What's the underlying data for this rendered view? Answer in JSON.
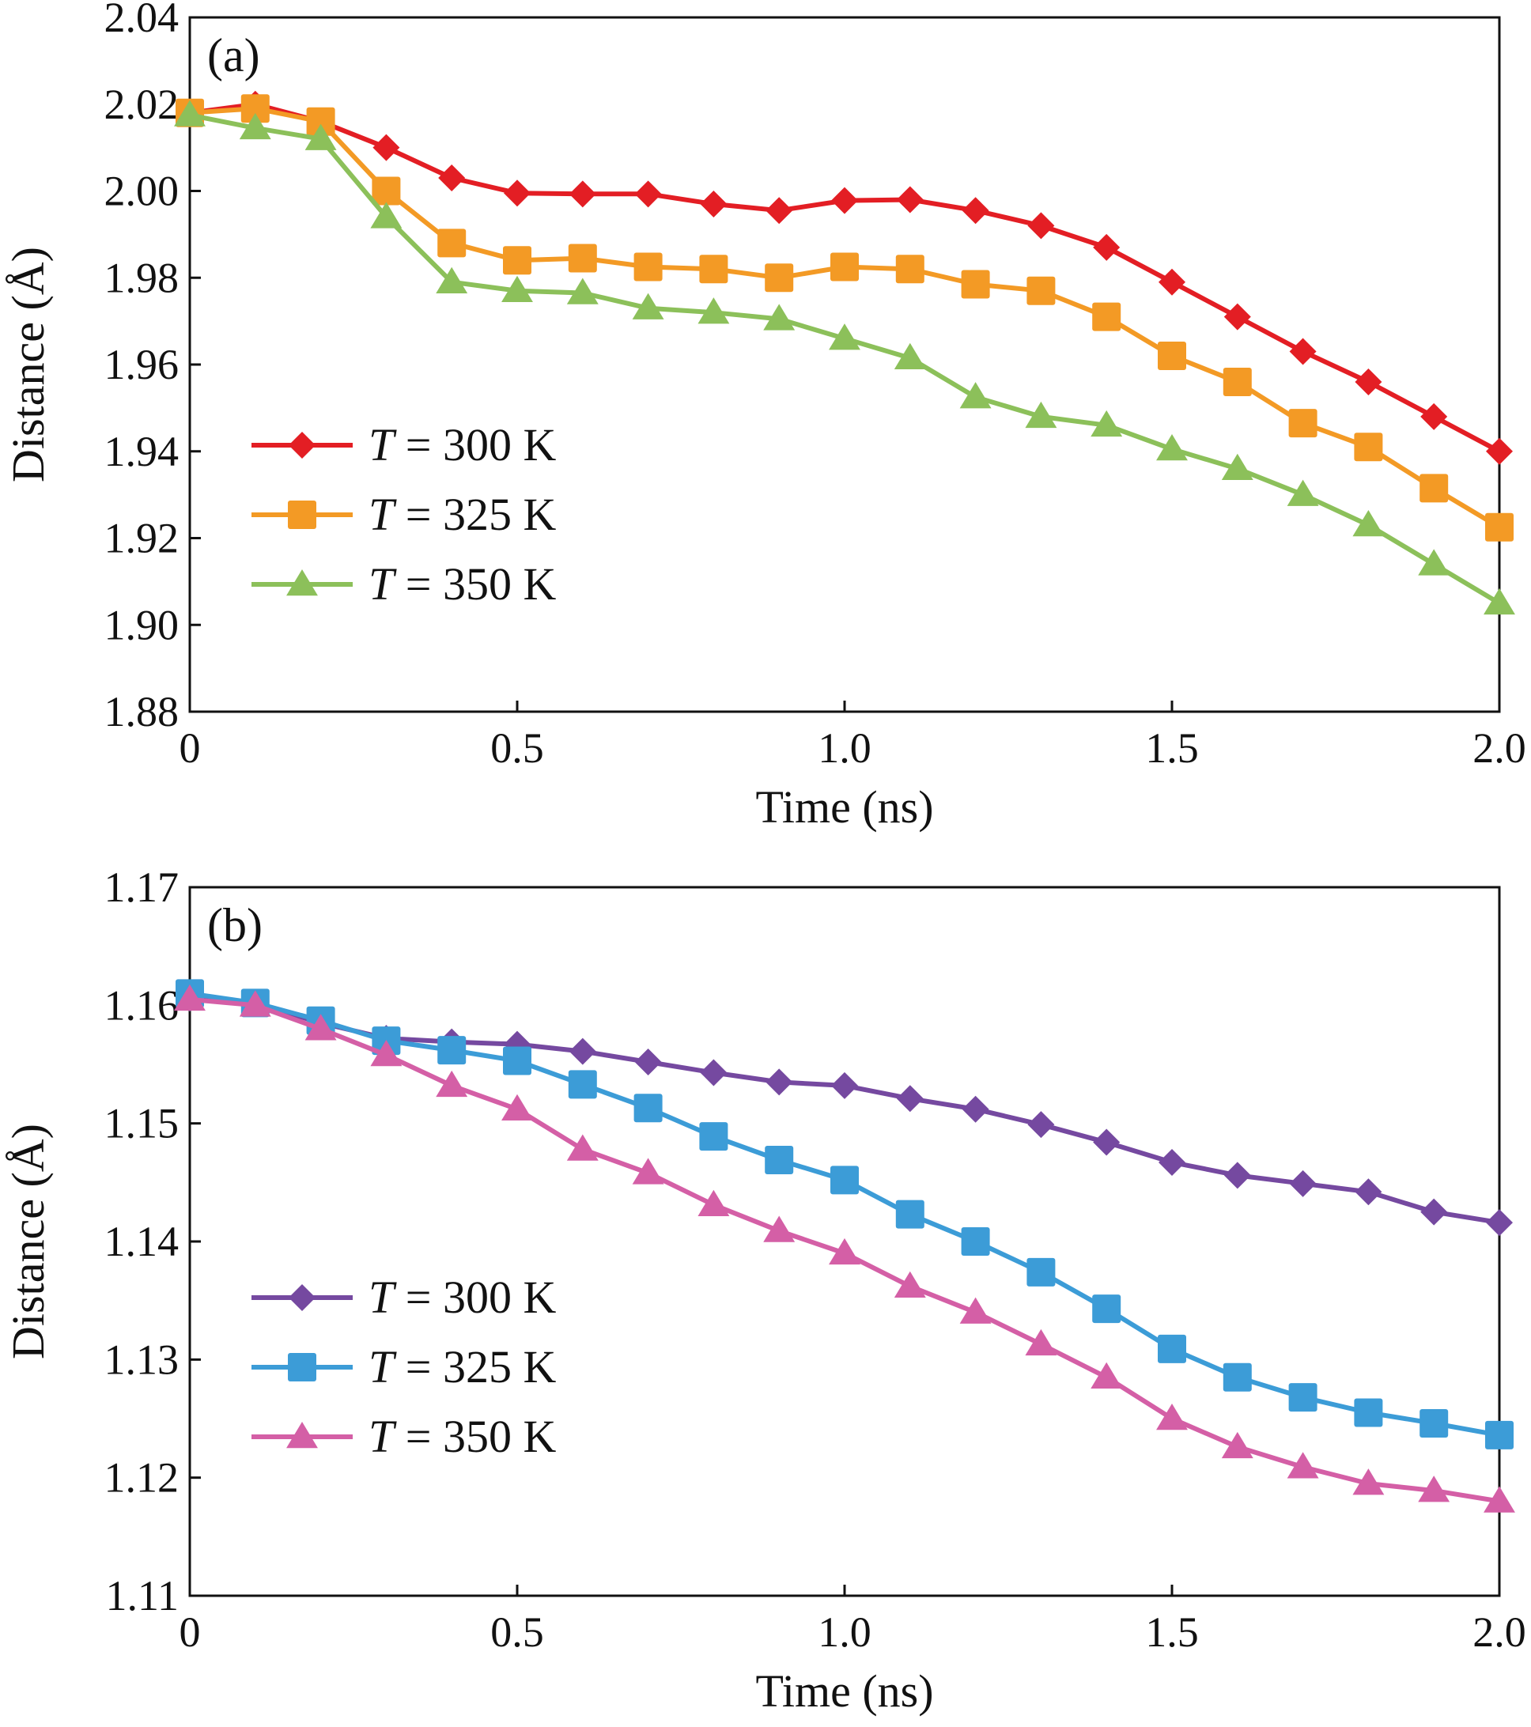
{
  "chart_data": [
    {
      "panel_label": "(a)",
      "type": "line",
      "xlabel": "Time (ns)",
      "ylabel": "Distance (Å)",
      "xlim": [
        0,
        2.0
      ],
      "ylim": [
        1.88,
        2.04
      ],
      "xticks": [
        "0",
        "0.5",
        "1.0",
        "1.5",
        "2.0"
      ],
      "yticks": [
        "1.88",
        "1.90",
        "1.92",
        "1.94",
        "1.96",
        "1.98",
        "2.00",
        "2.02",
        "2.04"
      ],
      "grid": false,
      "legend_position": "lower-left",
      "x": [
        0,
        0.1,
        0.2,
        0.3,
        0.4,
        0.5,
        0.6,
        0.7,
        0.8,
        0.9,
        1.0,
        1.1,
        1.2,
        1.3,
        1.4,
        1.5,
        1.6,
        1.7,
        1.8,
        1.9,
        2.0
      ],
      "series": [
        {
          "name": "= 300 K",
          "name_italic": "T",
          "color": "#e31e24",
          "marker": "diamond",
          "values": [
            2.018,
            2.02,
            2.016,
            2.01,
            2.003,
            1.9995,
            1.9993,
            1.9993,
            1.997,
            1.9955,
            1.9978,
            1.998,
            1.9955,
            1.992,
            1.987,
            1.979,
            1.971,
            1.963,
            1.956,
            1.948,
            1.94
          ]
        },
        {
          "name": "= 325 K",
          "name_italic": "T",
          "color": "#f39a25",
          "marker": "square",
          "values": [
            2.018,
            2.019,
            2.016,
            2.0,
            1.988,
            1.984,
            1.9845,
            1.9825,
            1.982,
            1.98,
            1.9825,
            1.982,
            1.9785,
            1.977,
            1.971,
            1.962,
            1.956,
            1.9465,
            1.941,
            1.9315,
            1.9225
          ]
        },
        {
          "name": "= 350 K",
          "name_italic": "T",
          "color": "#8cc05a",
          "marker": "triangle",
          "values": [
            2.0175,
            2.0145,
            2.012,
            1.994,
            1.979,
            1.977,
            1.9765,
            1.973,
            1.972,
            1.9705,
            1.966,
            1.9615,
            1.9525,
            1.948,
            1.946,
            1.9405,
            1.936,
            1.93,
            1.923,
            1.914,
            1.905
          ]
        }
      ]
    },
    {
      "panel_label": "(b)",
      "type": "line",
      "xlabel": "Time (ns)",
      "ylabel": "Distance (Å)",
      "xlim": [
        0,
        2.0
      ],
      "ylim": [
        1.11,
        1.17
      ],
      "xticks": [
        "0",
        "0.5",
        "1.0",
        "1.5",
        "2.0"
      ],
      "yticks": [
        "1.11",
        "1.12",
        "1.13",
        "1.14",
        "1.15",
        "1.16",
        "1.17"
      ],
      "grid": false,
      "legend_position": "lower-left",
      "x": [
        0,
        0.1,
        0.2,
        0.3,
        0.4,
        0.5,
        0.6,
        0.7,
        0.8,
        0.9,
        1.0,
        1.1,
        1.2,
        1.3,
        1.4,
        1.5,
        1.6,
        1.7,
        1.8,
        1.9,
        2.0
      ],
      "series": [
        {
          "name": "= 300 K",
          "name_italic": "T",
          "color": "#7549a0",
          "marker": "diamond",
          "values": [
            1.1606,
            1.1602,
            1.1585,
            1.1572,
            1.1569,
            1.1567,
            1.1561,
            1.1552,
            1.1543,
            1.1535,
            1.1532,
            1.1521,
            1.1512,
            1.1499,
            1.1484,
            1.1467,
            1.1456,
            1.1449,
            1.1442,
            1.1425,
            1.1416
          ]
        },
        {
          "name": "= 325 K",
          "name_italic": "T",
          "color": "#3c9cd7",
          "marker": "square",
          "values": [
            1.161,
            1.1602,
            1.1587,
            1.157,
            1.1562,
            1.1553,
            1.1533,
            1.1513,
            1.1489,
            1.1469,
            1.1452,
            1.1423,
            1.14,
            1.1374,
            1.1343,
            1.1309,
            1.1285,
            1.1268,
            1.1255,
            1.1246,
            1.1236
          ]
        },
        {
          "name": "= 350 K",
          "name_italic": "T",
          "color": "#d45fa6",
          "marker": "triangle",
          "values": [
            1.1605,
            1.16,
            1.158,
            1.1558,
            1.1532,
            1.1512,
            1.1478,
            1.1458,
            1.1431,
            1.1409,
            1.139,
            1.1362,
            1.134,
            1.1313,
            1.1285,
            1.125,
            1.1226,
            1.1209,
            1.1195,
            1.1189,
            1.118
          ]
        }
      ]
    }
  ]
}
